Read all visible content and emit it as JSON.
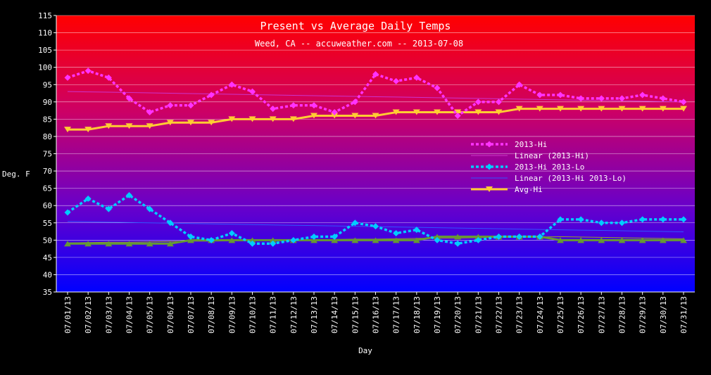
{
  "chart_data": {
    "type": "line",
    "title": "Present vs Average Daily Temps",
    "subtitle": "Weed, CA -- accuweather.com -- 2013-07-08",
    "xlabel": "Day",
    "ylabel": "Deg. F",
    "ylim": [
      35,
      115
    ],
    "yticks": [
      35,
      40,
      45,
      50,
      55,
      60,
      65,
      70,
      75,
      80,
      85,
      90,
      95,
      100,
      105,
      110,
      115
    ],
    "grid": true,
    "legend_position": "right",
    "categories": [
      "07/01/13",
      "07/02/13",
      "07/03/13",
      "07/04/13",
      "07/05/13",
      "07/06/13",
      "07/07/13",
      "07/08/13",
      "07/09/13",
      "07/10/13",
      "07/11/13",
      "07/12/13",
      "07/13/13",
      "07/14/13",
      "07/15/13",
      "07/16/13",
      "07/17/13",
      "07/18/13",
      "07/19/13",
      "07/20/13",
      "07/21/13",
      "07/22/13",
      "07/23/13",
      "07/24/13",
      "07/25/13",
      "07/26/13",
      "07/27/13",
      "07/28/13",
      "07/29/13",
      "07/30/13",
      "07/31/13"
    ],
    "series": [
      {
        "name": "2013-Hi",
        "color": "#ff33ff",
        "style": "dotted",
        "marker": "diamond",
        "values": [
          97,
          99,
          97,
          91,
          87,
          89,
          89,
          92,
          95,
          93,
          88,
          89,
          89,
          87,
          90,
          98,
          96,
          97,
          94,
          86,
          90,
          90,
          95,
          92,
          92,
          91,
          91,
          91,
          92,
          91,
          90
        ]
      },
      {
        "name": "Linear (2013-Hi)",
        "color": "#cc33cc",
        "style": "trend",
        "marker": "none",
        "values": [
          93.0,
          92.9,
          92.8,
          92.7,
          92.6,
          92.5,
          92.4,
          92.3,
          92.2,
          92.1,
          92.0,
          91.9,
          91.8,
          91.7,
          91.6,
          91.5,
          91.4,
          91.3,
          91.2,
          91.1,
          91.0,
          90.9,
          90.8,
          90.7,
          90.6,
          90.5,
          90.4,
          90.3,
          90.2,
          90.1,
          90.0
        ]
      },
      {
        "name": "2013-Hi 2013-Lo",
        "color": "#00ccff",
        "style": "dotted",
        "marker": "diamond",
        "values": [
          58,
          62,
          59,
          63,
          59,
          55,
          51,
          50,
          52,
          49,
          49,
          50,
          51,
          51,
          55,
          54,
          52,
          53,
          50,
          49,
          50,
          51,
          51,
          51,
          56,
          56,
          55,
          55,
          56,
          56,
          56
        ]
      },
      {
        "name": "Linear (2013-Hi 2013-Lo)",
        "color": "#3355ff",
        "style": "trend",
        "marker": "none",
        "values": [
          55.4,
          55.3,
          55.2,
          55.1,
          55.0,
          54.9,
          54.8,
          54.7,
          54.6,
          54.5,
          54.4,
          54.3,
          54.2,
          54.1,
          54.0,
          53.9,
          53.8,
          53.7,
          53.6,
          53.5,
          53.4,
          53.3,
          53.2,
          53.1,
          53.0,
          52.9,
          52.8,
          52.7,
          52.6,
          52.5,
          52.4
        ]
      },
      {
        "name": "Avg-Hi",
        "color": "#ffcc33",
        "style": "solid",
        "marker": "triangle-down",
        "values": [
          82,
          82,
          83,
          83,
          83,
          84,
          84,
          84,
          85,
          85,
          85,
          85,
          86,
          86,
          86,
          86,
          87,
          87,
          87,
          87,
          87,
          87,
          88,
          88,
          88,
          88,
          88,
          88,
          88,
          88,
          88
        ]
      },
      {
        "name": "",
        "color": "#669933",
        "style": "solid",
        "marker": "triangle-up",
        "values": [
          49,
          49,
          49,
          49,
          49,
          49,
          50,
          50,
          50,
          50,
          50,
          50,
          50,
          50,
          50,
          50,
          50,
          50,
          51,
          51,
          51,
          51,
          51,
          51,
          50,
          50,
          50,
          50,
          50,
          50,
          50
        ]
      },
      {
        "name": "",
        "color": "#999933",
        "style": "trend",
        "marker": "none",
        "values": [
          49.2,
          49.3,
          49.4,
          49.4,
          49.5,
          49.6,
          49.7,
          49.7,
          49.8,
          49.9,
          50.0,
          50.0,
          50.1,
          50.2,
          50.3,
          50.3,
          50.4,
          50.5,
          50.6,
          50.6,
          50.7,
          50.8,
          50.9,
          50.9,
          51.0,
          50.9,
          50.8,
          50.7,
          50.6,
          50.5,
          50.4
        ]
      }
    ]
  }
}
